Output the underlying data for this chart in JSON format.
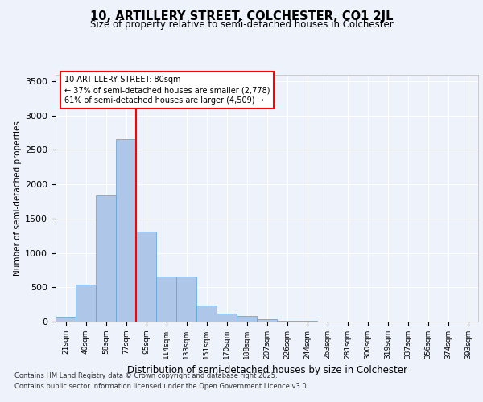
{
  "title1": "10, ARTILLERY STREET, COLCHESTER, CO1 2JL",
  "title2": "Size of property relative to semi-detached houses in Colchester",
  "xlabel": "Distribution of semi-detached houses by size in Colchester",
  "ylabel": "Number of semi-detached properties",
  "categories": [
    "21sqm",
    "40sqm",
    "58sqm",
    "77sqm",
    "95sqm",
    "114sqm",
    "133sqm",
    "151sqm",
    "170sqm",
    "188sqm",
    "207sqm",
    "226sqm",
    "244sqm",
    "263sqm",
    "281sqm",
    "300sqm",
    "319sqm",
    "337sqm",
    "356sqm",
    "374sqm",
    "393sqm"
  ],
  "values": [
    75,
    540,
    1840,
    2660,
    1310,
    650,
    650,
    240,
    120,
    80,
    30,
    15,
    8,
    4,
    2,
    1,
    0,
    0,
    0,
    0,
    0
  ],
  "bar_color": "#aec6e8",
  "bar_edge_color": "#5a9fd4",
  "vline_color": "red",
  "vline_position": 3.5,
  "annotation_title": "10 ARTILLERY STREET: 80sqm",
  "annotation_line1": "← 37% of semi-detached houses are smaller (2,778)",
  "annotation_line2": "61% of semi-detached houses are larger (4,509) →",
  "ylim": [
    0,
    3600
  ],
  "yticks": [
    0,
    500,
    1000,
    1500,
    2000,
    2500,
    3000,
    3500
  ],
  "footnote1": "Contains HM Land Registry data © Crown copyright and database right 2025.",
  "footnote2": "Contains public sector information licensed under the Open Government Licence v3.0.",
  "bg_color": "#eef2fb"
}
